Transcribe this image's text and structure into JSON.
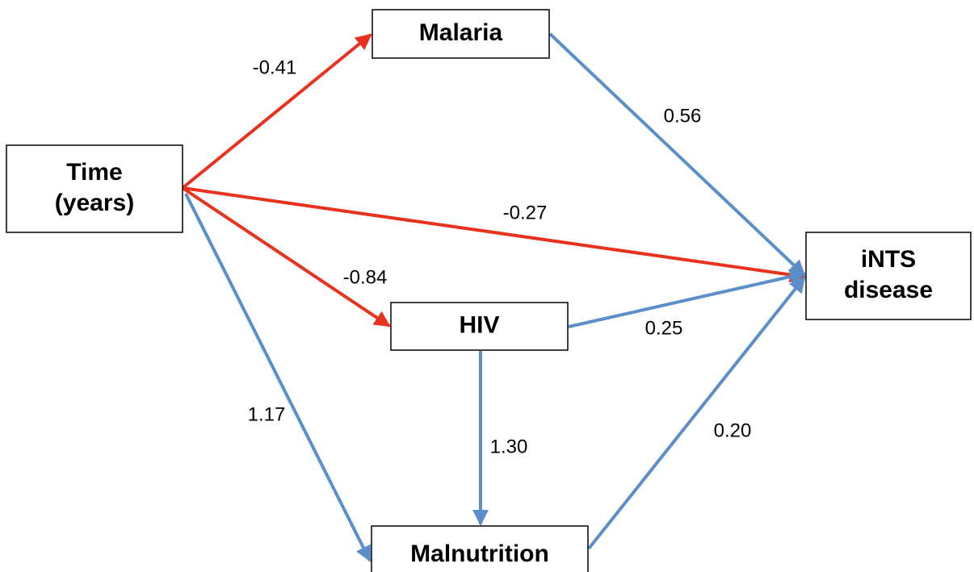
{
  "nodes": [
    {
      "label": [
        "Malaria"
      ]
    },
    {
      "label": [
        "Time",
        "(years)"
      ]
    },
    {
      "label": [
        "iNTS",
        "disease"
      ]
    },
    {
      "label": [
        "HIV"
      ]
    },
    {
      "label": [
        "Malnutrition"
      ]
    }
  ],
  "edges": [
    {
      "label": "-0.41"
    },
    {
      "label": "-0.27"
    },
    {
      "label": "-0.84"
    },
    {
      "label": "1.17"
    },
    {
      "label": "0.56"
    },
    {
      "label": "0.25"
    },
    {
      "label": "1.30"
    },
    {
      "label": "0.20"
    }
  ]
}
